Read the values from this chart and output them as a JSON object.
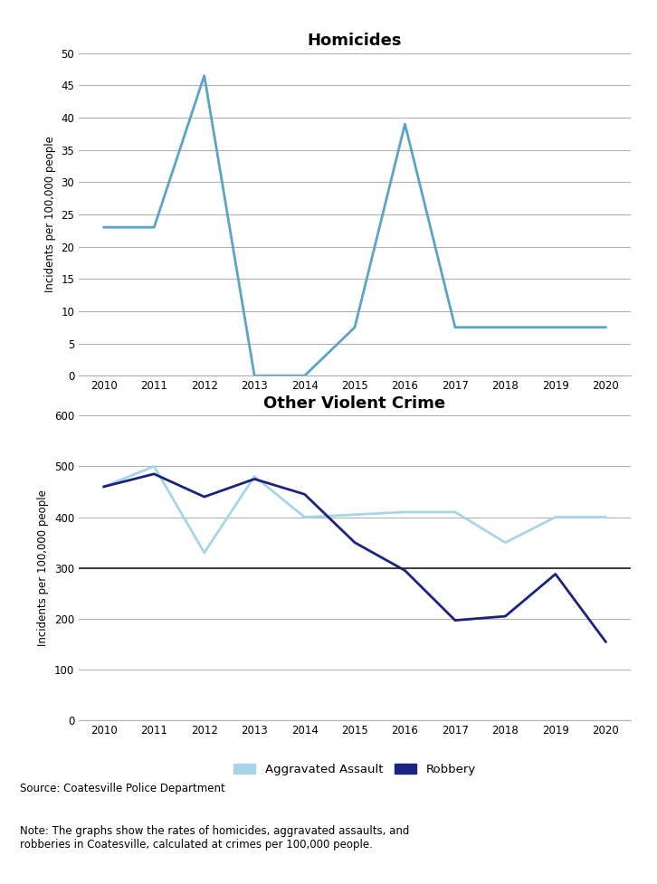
{
  "years": [
    2010,
    2011,
    2012,
    2013,
    2014,
    2015,
    2016,
    2017,
    2018,
    2019,
    2020
  ],
  "homicides": [
    23,
    23,
    46.5,
    0,
    0,
    7.5,
    39,
    7.5,
    7.5,
    7.5,
    7.5
  ],
  "aggravated_assault": [
    460,
    500,
    330,
    480,
    400,
    405,
    410,
    410,
    350,
    400,
    400
  ],
  "robbery": [
    460,
    485,
    440,
    475,
    445,
    350,
    295,
    197,
    205,
    288,
    155
  ],
  "homicide_color": "#5ba3c9",
  "assault_color": "#a8d4e8",
  "robbery_color": "#1a237e",
  "title1": "Homicides",
  "title2": "Other Violent Crime",
  "ylabel": "Incidents per 100,000 people",
  "ylim1": [
    0,
    50
  ],
  "yticks1": [
    0,
    5,
    10,
    15,
    20,
    25,
    30,
    35,
    40,
    45,
    50
  ],
  "ylim2": [
    0,
    600
  ],
  "yticks2": [
    0,
    100,
    200,
    300,
    400,
    500,
    600
  ],
  "source_text": "Source: Coatesville Police Department",
  "note_text": "Note: The graphs show the rates of homicides, aggravated assaults, and\nrobberies in Coatesville, calculated at crimes per 100,000 people.",
  "legend_assault": "Aggravated Assault",
  "legend_robbery": "Robbery",
  "background_color": "#ffffff",
  "grid_color": "#b0b0b0",
  "thick_line_color": "#222222"
}
